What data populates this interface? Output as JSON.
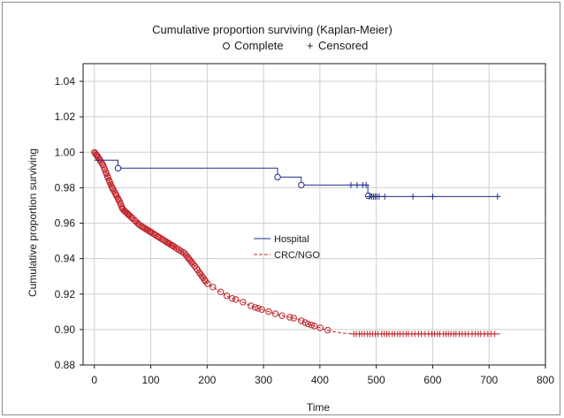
{
  "chart_data": {
    "type": "line",
    "title": "Cumulative proportion surviving (Kaplan-Meier)",
    "subtitle_complete": "Complete",
    "subtitle_censored": "Censored",
    "xlabel": "Time",
    "ylabel": "Cumulative proportion surviving",
    "xlim": [
      -20,
      800
    ],
    "ylim": [
      0.88,
      1.05
    ],
    "xticks": [
      0,
      100,
      200,
      300,
      400,
      500,
      600,
      700,
      800
    ],
    "yticks": [
      0.88,
      0.9,
      0.92,
      0.94,
      0.96,
      0.98,
      1.0,
      1.02,
      1.04
    ],
    "grid": true,
    "legend_position": "center",
    "series": [
      {
        "name": "Hospital",
        "color": "#1f2f8a",
        "dash": "solid",
        "steps": [
          [
            0,
            0.9955
          ],
          [
            42,
            0.9955
          ],
          [
            42,
            0.991
          ],
          [
            325,
            0.991
          ],
          [
            325,
            0.986
          ],
          [
            367,
            0.986
          ],
          [
            367,
            0.9815
          ],
          [
            485,
            0.9815
          ],
          [
            485,
            0.9755
          ],
          [
            490,
            0.9755
          ],
          [
            490,
            0.975
          ],
          [
            720,
            0.975
          ]
        ],
        "complete": [
          [
            42,
            0.991
          ],
          [
            325,
            0.986
          ],
          [
            367,
            0.9815
          ],
          [
            486,
            0.9755
          ]
        ],
        "censored": [
          [
            455,
            0.9815
          ],
          [
            466,
            0.9815
          ],
          [
            476,
            0.9815
          ],
          [
            482,
            0.9815
          ],
          [
            488,
            0.975
          ],
          [
            492,
            0.975
          ],
          [
            495,
            0.975
          ],
          [
            498,
            0.975
          ],
          [
            501,
            0.975
          ],
          [
            505,
            0.975
          ],
          [
            515,
            0.975
          ],
          [
            565,
            0.975
          ],
          [
            600,
            0.975
          ],
          [
            715,
            0.975
          ]
        ]
      },
      {
        "name": "CRC/NGO",
        "color": "#c0262d",
        "dash": "dashed",
        "curve": [
          [
            0,
            1.0
          ],
          [
            5,
            0.998
          ],
          [
            10,
            0.9955
          ],
          [
            15,
            0.993
          ],
          [
            20,
            0.989
          ],
          [
            25,
            0.985
          ],
          [
            30,
            0.981
          ],
          [
            35,
            0.978
          ],
          [
            40,
            0.975
          ],
          [
            45,
            0.972
          ],
          [
            50,
            0.968
          ],
          [
            60,
            0.965
          ],
          [
            70,
            0.962
          ],
          [
            80,
            0.959
          ],
          [
            90,
            0.957
          ],
          [
            100,
            0.955
          ],
          [
            120,
            0.951
          ],
          [
            140,
            0.947
          ],
          [
            160,
            0.943
          ],
          [
            180,
            0.935
          ],
          [
            200,
            0.926
          ],
          [
            220,
            0.922
          ],
          [
            240,
            0.918
          ],
          [
            260,
            0.916
          ],
          [
            280,
            0.913
          ],
          [
            300,
            0.911
          ],
          [
            330,
            0.908
          ],
          [
            360,
            0.906
          ],
          [
            380,
            0.903
          ],
          [
            400,
            0.901
          ],
          [
            420,
            0.899
          ],
          [
            440,
            0.898
          ],
          [
            460,
            0.8975
          ],
          [
            720,
            0.8975
          ]
        ],
        "complete_range": [
          0,
          420
        ],
        "censored_range": [
          460,
          715
        ]
      }
    ]
  }
}
